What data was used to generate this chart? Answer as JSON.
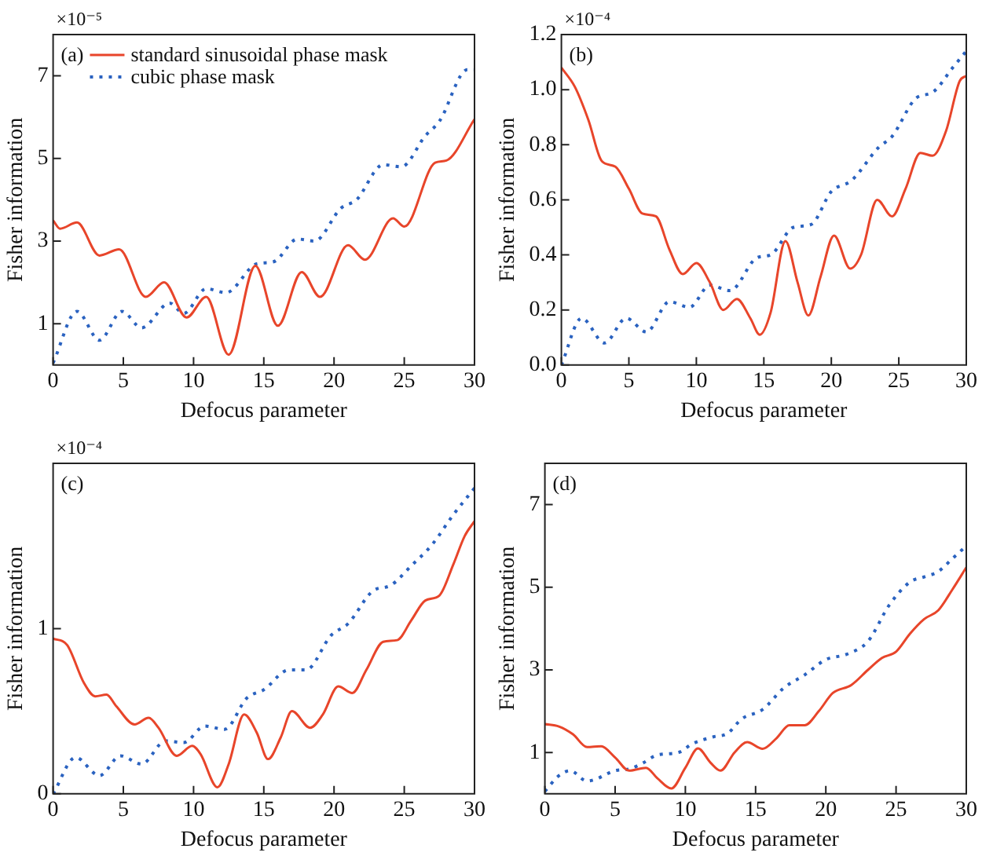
{
  "chart_data": [
    {
      "type": "line",
      "xlabel": "Defocus parameter",
      "ylabel": "Fisher information",
      "annotations": [
        "(a)",
        "×10⁻⁵"
      ],
      "xlim": [
        0,
        30
      ],
      "xticks": [
        0,
        5,
        10,
        15,
        20,
        25,
        30
      ],
      "ylim": [
        0,
        8
      ],
      "yticks": [
        1,
        3,
        5,
        7
      ],
      "grid": false,
      "legend": "top left",
      "series": [
        {
          "name": "standard sinusoidal phase mask",
          "color": "#e8452a",
          "line_style": "solid",
          "x": [
            0,
            0.5,
            1.7,
            3.3,
            4.7,
            6.6,
            7.9,
            9.5,
            10.9,
            12.5,
            14.4,
            16,
            17.7,
            19,
            21,
            22.2,
            24.2,
            25,
            27.2,
            28,
            30
          ],
          "values": [
            3.5,
            3.3,
            3.45,
            2.65,
            2.8,
            1.65,
            2.0,
            1.15,
            1.65,
            0.25,
            2.4,
            0.95,
            2.25,
            1.65,
            2.9,
            2.55,
            3.55,
            3.35,
            4.9,
            4.95,
            5.95
          ]
        },
        {
          "name": "cubic phase mask",
          "color": "#2a62c0",
          "line_style": "dotted",
          "x": [
            0,
            1.7,
            3.3,
            4.9,
            6.3,
            8.3,
            9.3,
            10.9,
            12.3,
            14.5,
            15.7,
            17.4,
            18.6,
            20.5,
            21.6,
            23.5,
            24.8,
            26.5,
            27.5,
            29.5,
            30
          ],
          "values": [
            0.05,
            1.3,
            0.6,
            1.3,
            0.9,
            1.5,
            1.25,
            1.85,
            1.75,
            2.45,
            2.5,
            3.05,
            3.0,
            3.8,
            4.0,
            4.85,
            4.8,
            5.55,
            5.9,
            7.15,
            7.15
          ]
        }
      ]
    },
    {
      "type": "line",
      "xlabel": "Defocus parameter",
      "ylabel": "Fisher information",
      "annotations": [
        "(b)",
        "×10⁻⁴"
      ],
      "xlim": [
        0,
        30
      ],
      "xticks": [
        0,
        5,
        10,
        15,
        20,
        25,
        30
      ],
      "ylim": [
        0,
        1.2
      ],
      "yticks": [
        {
          "value": 0,
          "label": "0.0"
        },
        0.2,
        0.4,
        0.6,
        0.8,
        {
          "value": 1,
          "label": "1.0"
        },
        1.2
      ],
      "grid": false,
      "series": [
        {
          "color": "#e8452a",
          "line_style": "solid",
          "x": [
            0,
            1,
            2,
            3,
            4,
            5,
            6,
            7,
            8,
            9,
            10,
            11,
            12,
            13,
            14,
            14.7,
            15.5,
            16.6,
            17.5,
            18.3,
            19.2,
            20.2,
            21.4,
            22.2,
            23.4,
            24.5,
            25.5,
            26.6,
            27.5,
            28.5,
            29.5,
            30
          ],
          "values": [
            1.08,
            1.01,
            0.89,
            0.74,
            0.72,
            0.64,
            0.55,
            0.54,
            0.42,
            0.33,
            0.37,
            0.3,
            0.2,
            0.24,
            0.17,
            0.11,
            0.19,
            0.45,
            0.3,
            0.18,
            0.32,
            0.47,
            0.35,
            0.4,
            0.6,
            0.54,
            0.64,
            0.77,
            0.76,
            0.85,
            1.03,
            1.05
          ]
        },
        {
          "color": "#2a62c0",
          "line_style": "dotted",
          "x": [
            0,
            1.5,
            3.2,
            4.8,
            6.3,
            8,
            9.5,
            11,
            12.5,
            14.5,
            15.5,
            17.2,
            18.5,
            20,
            21.5,
            23.5,
            24.5,
            26.3,
            27.5,
            29,
            30
          ],
          "values": [
            0,
            0.17,
            0.08,
            0.17,
            0.12,
            0.23,
            0.21,
            0.29,
            0.27,
            0.39,
            0.4,
            0.5,
            0.51,
            0.63,
            0.67,
            0.79,
            0.83,
            0.97,
            0.99,
            1.08,
            1.14
          ]
        }
      ]
    },
    {
      "type": "line",
      "xlabel": "Defocus parameter",
      "ylabel": "Fisher information",
      "annotations": [
        "(c)",
        "×10⁻⁴"
      ],
      "xlim": [
        0,
        30
      ],
      "xticks": [
        0,
        5,
        10,
        15,
        20,
        25,
        30
      ],
      "ylim": [
        0,
        2
      ],
      "yticks": [
        0,
        1
      ],
      "grid": false,
      "series": [
        {
          "color": "#e8452a",
          "line_style": "solid",
          "x": [
            0,
            1,
            2.2,
            3,
            3.8,
            4.5,
            5.8,
            6.8,
            7.5,
            8.8,
            9.9,
            10.5,
            11.7,
            12.5,
            13.6,
            14.5,
            15.3,
            16.2,
            17,
            18.3,
            19.2,
            20.3,
            21.3,
            22.3,
            23.5,
            24.5,
            25.5,
            26.5,
            27.5,
            28.5,
            29.3,
            30
          ],
          "values": [
            0.94,
            0.9,
            0.67,
            0.59,
            0.6,
            0.53,
            0.42,
            0.46,
            0.4,
            0.23,
            0.29,
            0.24,
            0.04,
            0.18,
            0.48,
            0.37,
            0.21,
            0.34,
            0.5,
            0.4,
            0.48,
            0.65,
            0.61,
            0.75,
            0.92,
            0.93,
            1.05,
            1.17,
            1.2,
            1.39,
            1.56,
            1.65
          ]
        },
        {
          "color": "#2a62c0",
          "line_style": "dotted",
          "x": [
            0,
            1.6,
            3.3,
            4.8,
            6.3,
            8,
            9.3,
            10.8,
            12.2,
            13.8,
            15,
            16.8,
            18,
            19.8,
            21,
            22.8,
            24,
            25.5,
            27,
            28.5,
            30
          ],
          "values": [
            0,
            0.22,
            0.11,
            0.23,
            0.18,
            0.32,
            0.31,
            0.41,
            0.39,
            0.58,
            0.63,
            0.75,
            0.75,
            0.96,
            1.03,
            1.23,
            1.26,
            1.38,
            1.51,
            1.69,
            1.85
          ]
        }
      ]
    },
    {
      "type": "line",
      "xlabel": "Defocus parameter",
      "ylabel": "Fisher information",
      "annotations": [
        "(d)"
      ],
      "xlim": [
        0,
        30
      ],
      "xticks": [
        0,
        5,
        10,
        15,
        20,
        25,
        30
      ],
      "ylim": [
        0,
        8
      ],
      "yticks": [
        1,
        3,
        5,
        7
      ],
      "grid": false,
      "series": [
        {
          "color": "#e8452a",
          "line_style": "solid",
          "x": [
            0,
            1,
            2,
            3,
            4,
            5,
            6,
            7.2,
            8,
            9,
            10,
            10.9,
            11.8,
            12.5,
            13.5,
            14.4,
            15.5,
            16.5,
            17.4,
            18.5,
            19.5,
            20.5,
            21.8,
            23,
            24,
            25,
            26,
            27,
            28,
            29,
            30
          ],
          "values": [
            1.69,
            1.63,
            1.44,
            1.13,
            1.15,
            0.88,
            0.56,
            0.63,
            0.38,
            0.13,
            0.63,
            1.1,
            0.75,
            0.56,
            1.0,
            1.25,
            1.09,
            1.35,
            1.66,
            1.66,
            2.0,
            2.44,
            2.63,
            3.0,
            3.29,
            3.44,
            3.88,
            4.23,
            4.44,
            4.94,
            5.48
          ]
        },
        {
          "color": "#2a62c0",
          "line_style": "dotted",
          "x": [
            0,
            1,
            1.8,
            3,
            3.5,
            5,
            6,
            7,
            8,
            9.5,
            10.5,
            12,
            13,
            14,
            15.5,
            17,
            18.5,
            20,
            21.5,
            23,
            24.5,
            26,
            27,
            28,
            29,
            30
          ],
          "values": [
            0.06,
            0.44,
            0.56,
            0.31,
            0.34,
            0.56,
            0.6,
            0.75,
            0.94,
            1.0,
            1.21,
            1.38,
            1.46,
            1.81,
            2.04,
            2.56,
            2.88,
            3.25,
            3.38,
            3.69,
            4.56,
            5.13,
            5.25,
            5.38,
            5.69,
            6.0
          ]
        }
      ]
    }
  ]
}
